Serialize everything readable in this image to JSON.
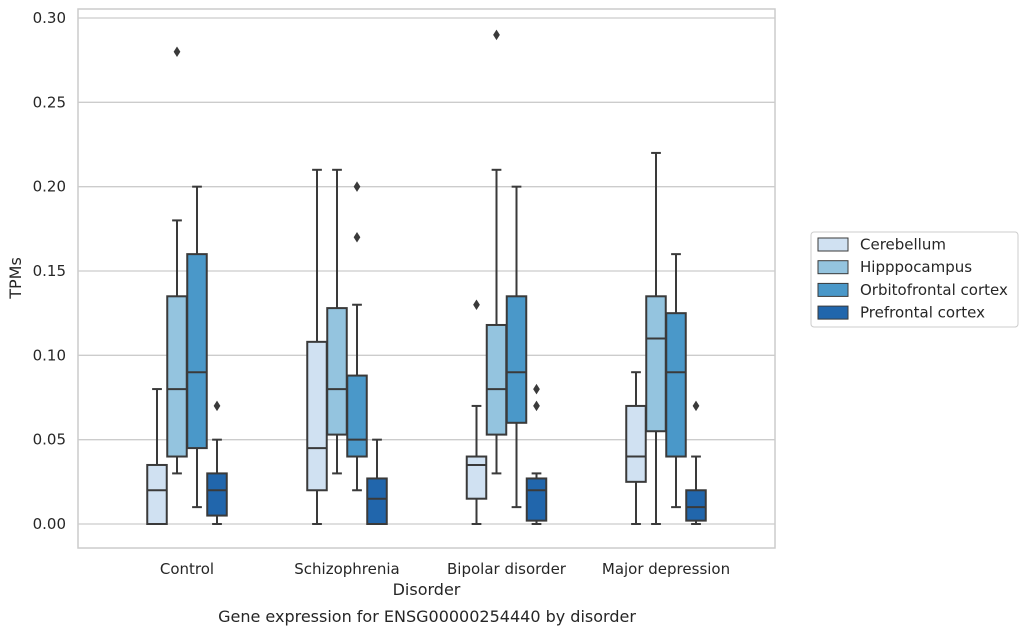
{
  "chart_data": {
    "type": "box",
    "title": "",
    "caption": "Gene expression for ENSG00000254440 by disorder",
    "xlabel": "Disorder",
    "ylabel": "TPMs",
    "ylim": [
      -0.014,
      0.305
    ],
    "yticks": [
      "0.00",
      "0.05",
      "0.10",
      "0.15",
      "0.20",
      "0.25",
      "0.30"
    ],
    "grid": "horizontal",
    "legend_position": "right",
    "categories": [
      "Control",
      "Schizophrenia",
      "Bipolar disorder",
      "Major depression"
    ],
    "series": [
      {
        "name": "Cerebellum",
        "color": "#d0e1f2",
        "boxes": [
          {
            "whisker_low": 0.0,
            "q1": 0.0,
            "median": 0.02,
            "q3": 0.035,
            "whisker_high": 0.08,
            "outliers": []
          },
          {
            "whisker_low": 0.0,
            "q1": 0.02,
            "median": 0.045,
            "q3": 0.108,
            "whisker_high": 0.21,
            "outliers": []
          },
          {
            "whisker_low": 0.0,
            "q1": 0.015,
            "median": 0.035,
            "q3": 0.04,
            "whisker_high": 0.07,
            "outliers": [
              0.13
            ]
          },
          {
            "whisker_low": 0.0,
            "q1": 0.025,
            "median": 0.04,
            "q3": 0.07,
            "whisker_high": 0.09,
            "outliers": []
          }
        ]
      },
      {
        "name": "Hipppocampus",
        "color": "#94c4df",
        "boxes": [
          {
            "whisker_low": 0.03,
            "q1": 0.04,
            "median": 0.08,
            "q3": 0.135,
            "whisker_high": 0.18,
            "outliers": [
              0.28
            ]
          },
          {
            "whisker_low": 0.03,
            "q1": 0.053,
            "median": 0.08,
            "q3": 0.128,
            "whisker_high": 0.21,
            "outliers": []
          },
          {
            "whisker_low": 0.03,
            "q1": 0.053,
            "median": 0.08,
            "q3": 0.118,
            "whisker_high": 0.21,
            "outliers": [
              0.29
            ]
          },
          {
            "whisker_low": 0.0,
            "q1": 0.055,
            "median": 0.11,
            "q3": 0.135,
            "whisker_high": 0.22,
            "outliers": []
          }
        ]
      },
      {
        "name": "Orbitofrontal cortex",
        "color": "#4a98c9",
        "boxes": [
          {
            "whisker_low": 0.01,
            "q1": 0.045,
            "median": 0.09,
            "q3": 0.16,
            "whisker_high": 0.2,
            "outliers": []
          },
          {
            "whisker_low": 0.02,
            "q1": 0.04,
            "median": 0.05,
            "q3": 0.088,
            "whisker_high": 0.13,
            "outliers": [
              0.17,
              0.2
            ]
          },
          {
            "whisker_low": 0.01,
            "q1": 0.06,
            "median": 0.09,
            "q3": 0.135,
            "whisker_high": 0.2,
            "outliers": []
          },
          {
            "whisker_low": 0.01,
            "q1": 0.04,
            "median": 0.09,
            "q3": 0.125,
            "whisker_high": 0.16,
            "outliers": []
          }
        ]
      },
      {
        "name": "Prefrontal cortex",
        "color": "#2166ac",
        "boxes": [
          {
            "whisker_low": 0.0,
            "q1": 0.005,
            "median": 0.02,
            "q3": 0.03,
            "whisker_high": 0.05,
            "outliers": [
              0.07
            ]
          },
          {
            "whisker_low": 0.0,
            "q1": 0.0,
            "median": 0.015,
            "q3": 0.027,
            "whisker_high": 0.05,
            "outliers": []
          },
          {
            "whisker_low": 0.0,
            "q1": 0.002,
            "median": 0.02,
            "q3": 0.027,
            "whisker_high": 0.03,
            "outliers": [
              0.07,
              0.08
            ]
          },
          {
            "whisker_low": 0.0,
            "q1": 0.002,
            "median": 0.01,
            "q3": 0.02,
            "whisker_high": 0.04,
            "outliers": [
              0.07
            ]
          }
        ]
      }
    ]
  },
  "colors": {
    "frame": "#cccccc",
    "grid": "#cccccc",
    "line": "#3a3a3a",
    "text": "#262626"
  }
}
